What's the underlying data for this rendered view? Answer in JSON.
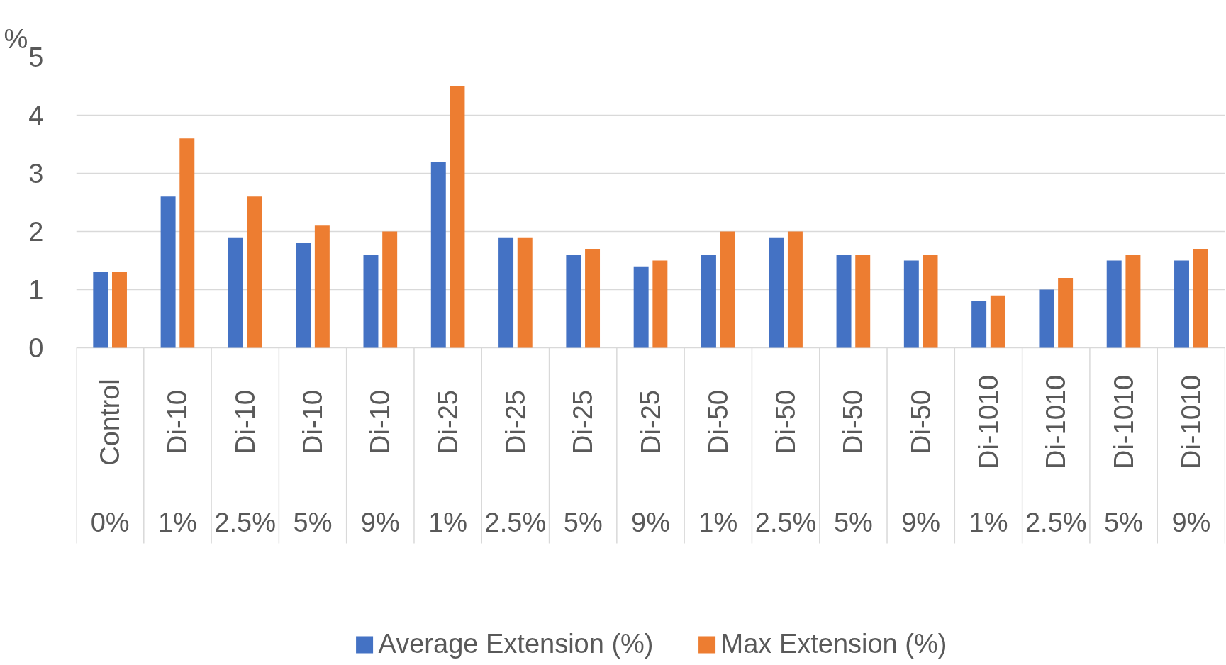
{
  "chart_data": {
    "type": "bar",
    "ylabel": "%",
    "categories": [
      [
        "Control",
        "0%"
      ],
      [
        "Di-10",
        "1%"
      ],
      [
        "Di-10",
        "2.5%"
      ],
      [
        "Di-10",
        "5%"
      ],
      [
        "Di-10",
        "9%"
      ],
      [
        "Di-25",
        "1%"
      ],
      [
        "Di-25",
        "2.5%"
      ],
      [
        "Di-25",
        "5%"
      ],
      [
        "Di-25",
        "9%"
      ],
      [
        "Di-50",
        "1%"
      ],
      [
        "Di-50",
        "2.5%"
      ],
      [
        "Di-50",
        "5%"
      ],
      [
        "Di-50",
        "9%"
      ],
      [
        "Di-1010",
        "1%"
      ],
      [
        "Di-1010",
        "2.5%"
      ],
      [
        "Di-1010",
        "5%"
      ],
      [
        "Di-1010",
        "9%"
      ]
    ],
    "series": [
      {
        "name": "Average Extension (%)",
        "color": "#4472c4",
        "values": [
          1.3,
          2.6,
          1.9,
          1.8,
          1.6,
          3.2,
          1.9,
          1.6,
          1.4,
          1.6,
          1.9,
          1.6,
          1.5,
          0.8,
          1.0,
          1.5,
          1.5
        ]
      },
      {
        "name": "Max Extension (%)",
        "color": "#ed7d31",
        "values": [
          1.3,
          3.6,
          2.6,
          2.1,
          2.0,
          4.5,
          1.9,
          1.7,
          1.5,
          2.0,
          2.0,
          1.6,
          1.6,
          0.9,
          1.2,
          1.6,
          1.7
        ]
      }
    ],
    "ylim": [
      0,
      5
    ],
    "yticks": [
      0,
      1,
      2,
      3,
      4,
      5
    ],
    "grid": "y",
    "legend": "bottom"
  }
}
